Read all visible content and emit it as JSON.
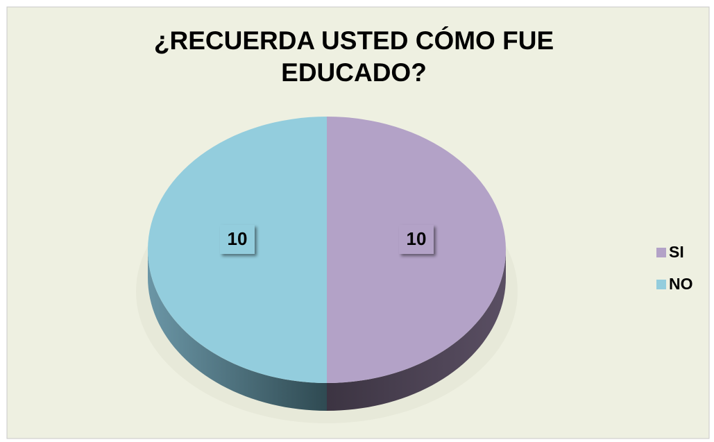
{
  "chart_data": {
    "type": "pie",
    "title": "¿RECUERDA USTED CÓMO FUE EDUCADO?",
    "categories": [
      "SI",
      "NO"
    ],
    "values": [
      10,
      10
    ],
    "colors": [
      "#b3a2c7",
      "#93cddd"
    ],
    "legend": "right"
  }
}
